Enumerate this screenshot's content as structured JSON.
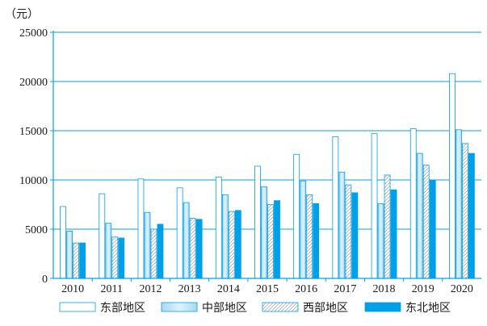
{
  "chart_data": {
    "type": "bar",
    "unit_label": "（元）",
    "categories": [
      "2010",
      "2011",
      "2012",
      "2013",
      "2014",
      "2015",
      "2016",
      "2017",
      "2018",
      "2019",
      "2020"
    ],
    "series": [
      {
        "name": "东部地区",
        "values": [
          7300,
          8600,
          10100,
          9200,
          10300,
          11400,
          12600,
          14400,
          14700,
          15200,
          20800
        ],
        "fill": "#ffffff",
        "pattern": "none"
      },
      {
        "name": "中部地区",
        "values": [
          4800,
          5600,
          6700,
          7700,
          8500,
          9300,
          9900,
          10800,
          7600,
          12700,
          15100
        ],
        "fill": "#bfe3f5",
        "pattern": "gradient"
      },
      {
        "name": "西部地区",
        "values": [
          3600,
          4200,
          5000,
          6100,
          6800,
          7500,
          8500,
          9500,
          10500,
          11500,
          13700
        ],
        "fill": "#ffffff",
        "pattern": "hatch"
      },
      {
        "name": "东北地区",
        "values": [
          3600,
          4100,
          5500,
          6000,
          6900,
          7900,
          7600,
          8700,
          9000,
          10000,
          12700
        ],
        "fill": "#00a0e9",
        "pattern": "solid"
      }
    ],
    "ylim": [
      0,
      25000
    ],
    "yticks": [
      "0",
      "5000",
      "10000",
      "15000",
      "20000",
      "25000"
    ],
    "grid": true,
    "legend_position": "bottom",
    "colors": {
      "axis": "#00a0e9",
      "bar_stroke": "#00a0e9",
      "text": "#1a1a1a"
    }
  }
}
